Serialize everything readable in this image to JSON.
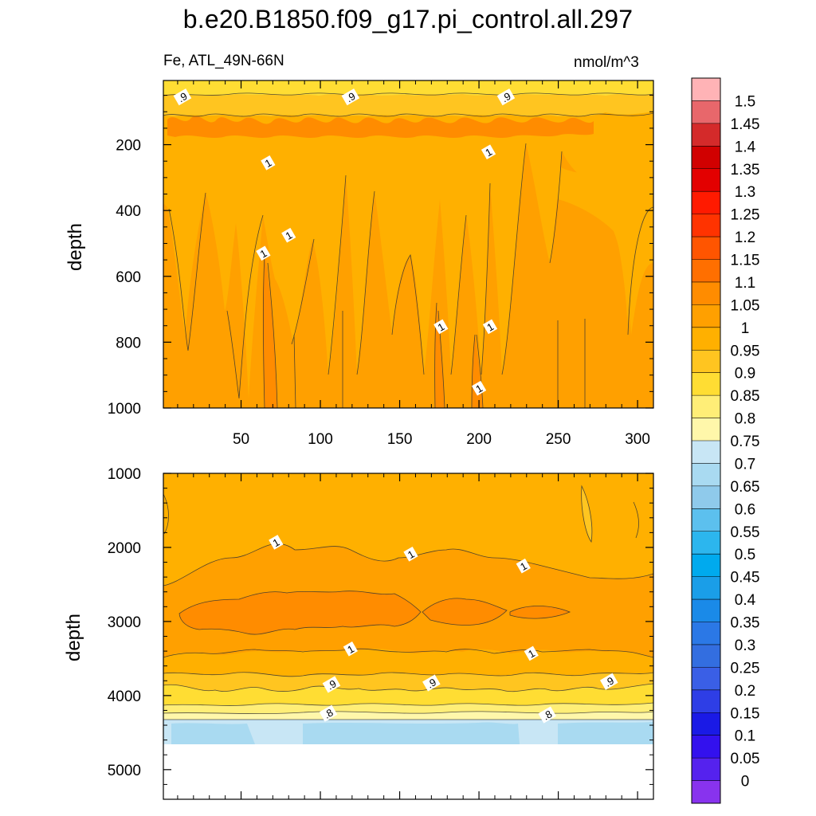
{
  "title": "b.e20.B1850.f09_g17.pi_control.all.297",
  "subtitle_left": "Fe, ATL_49N-66N",
  "subtitle_right": "nmol/m^3",
  "chart_data": [
    {
      "type": "heatmap",
      "panel": "upper",
      "xlabel": "",
      "ylabel": "depth",
      "xlim": [
        1,
        310
      ],
      "ylim": [
        1000,
        5
      ],
      "x_ticks": [
        50,
        100,
        150,
        200,
        250,
        300
      ],
      "x_tick_labels": [
        "50",
        "100",
        "150",
        "200",
        "250",
        "300"
      ],
      "y_ticks": [
        200,
        400,
        600,
        800,
        1000
      ],
      "y_tick_labels": [
        "200",
        "400",
        "600",
        "800",
        "1000"
      ],
      "contour_labels": [
        {
          "text": ".9",
          "x": 13,
          "y": 55
        },
        {
          "text": ".9",
          "x": 119,
          "y": 55
        },
        {
          "text": ".9",
          "x": 217,
          "y": 55
        },
        {
          "text": "1",
          "x": 67,
          "y": 255
        },
        {
          "text": "1",
          "x": 206,
          "y": 222
        },
        {
          "text": "1",
          "x": 80,
          "y": 475
        },
        {
          "text": "1",
          "x": 64,
          "y": 530
        },
        {
          "text": "1",
          "x": 176,
          "y": 753
        },
        {
          "text": "1",
          "x": 207,
          "y": 753
        },
        {
          "text": "1",
          "x": 200,
          "y": 940
        }
      ]
    },
    {
      "type": "heatmap",
      "panel": "lower",
      "xlabel": "",
      "ylabel": "depth",
      "xlim": [
        1,
        310
      ],
      "ylim": [
        1000,
        5400
      ],
      "y_ticks": [
        1000,
        2000,
        3000,
        4000,
        5000
      ],
      "y_tick_labels": [
        "1000",
        "2000",
        "3000",
        "4000",
        "5000"
      ],
      "contour_labels": [
        {
          "text": "1",
          "x": 72,
          "y": 1930
        },
        {
          "text": "1",
          "x": 157,
          "y": 2090
        },
        {
          "text": "1",
          "x": 228,
          "y": 2250
        },
        {
          "text": "1",
          "x": 119,
          "y": 3370
        },
        {
          "text": "1",
          "x": 233,
          "y": 3430
        },
        {
          "text": ".9",
          "x": 107,
          "y": 3850
        },
        {
          "text": ".9",
          "x": 170,
          "y": 3830
        },
        {
          "text": ".9",
          "x": 282,
          "y": 3810
        },
        {
          "text": ".8",
          "x": 105,
          "y": 4240
        },
        {
          "text": ".8",
          "x": 243,
          "y": 4260
        }
      ]
    }
  ],
  "colorbar": {
    "labels": [
      "1.5",
      "1.45",
      "1.4",
      "1.35",
      "1.3",
      "1.25",
      "1.2",
      "1.15",
      "1.1",
      "1.05",
      "1",
      "0.95",
      "0.9",
      "0.85",
      "0.8",
      "0.75",
      "0.7",
      "0.65",
      "0.6",
      "0.55",
      "0.5",
      "0.45",
      "0.4",
      "0.35",
      "0.3",
      "0.25",
      "0.2",
      "0.15",
      "0.1",
      "0.05",
      "0"
    ],
    "colors": [
      "#ffb3b6",
      "#e8676b",
      "#d42a2a",
      "#d10000",
      "#e30000",
      "#ff1a00",
      "#ff3300",
      "#ff5500",
      "#ff6f00",
      "#ff8c00",
      "#ffa000",
      "#ffb000",
      "#ffc520",
      "#ffdd33",
      "#ffee77",
      "#fff7aa",
      "#c8e6f5",
      "#a9daf1",
      "#8fcaeb",
      "#5cc0ee",
      "#2cb6ee",
      "#00aaee",
      "#1a9ee8",
      "#1a8ae8",
      "#2b78e6",
      "#336ee0",
      "#3a5fe6",
      "#2e3ee6",
      "#1a1ae6",
      "#3311ee",
      "#5522ee",
      "#8833ee"
    ]
  }
}
